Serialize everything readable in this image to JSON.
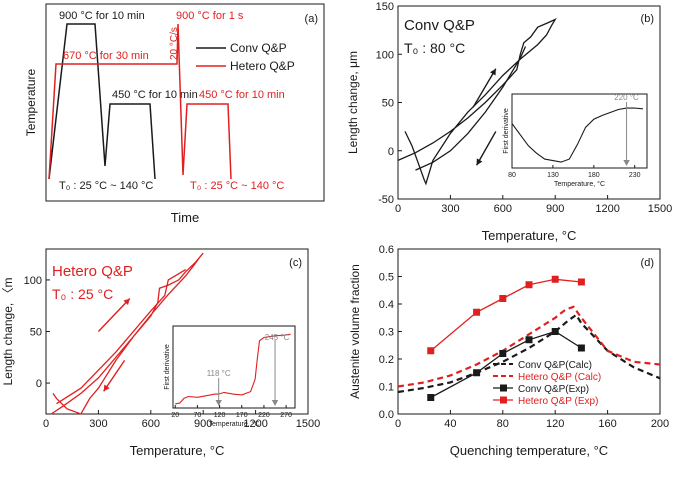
{
  "chart_data": [
    {
      "panel": "a",
      "type": "line",
      "panel_label": "(a)",
      "xlabel": "Time",
      "ylabel": "Temperature",
      "legend": [
        {
          "name": "Conv Q&P",
          "color": "#1a1a1a"
        },
        {
          "name": "Hetero Q&P",
          "color": "#e02020"
        }
      ],
      "annotations": {
        "conv_austenitize": "900 °C for 10 min",
        "conv_partition": "450 °C for 10 min",
        "conv_quench": "T₀ : 25 °C ~ 140 °C",
        "hetero_austenitize": "900 °C for 1 s",
        "hetero_intercritical": "670 °C for 30 min",
        "hetero_rate": "20 °C/s",
        "hetero_partition": "450 °C for 10 min",
        "hetero_quench": "T₀ : 25 °C ~ 140 °C"
      }
    },
    {
      "panel": "b",
      "type": "line",
      "panel_label": "(b)",
      "title": "Conv Q&P",
      "subtitle": "T₀ : 80 °C",
      "xlabel": "Temperature, °C",
      "ylabel": "Length change, μm",
      "xlim": [
        0,
        1500
      ],
      "ylim": [
        -50,
        150
      ],
      "xticks": [
        0,
        300,
        600,
        900,
        1200,
        1500
      ],
      "yticks": [
        -50,
        0,
        50,
        100,
        150
      ],
      "series": [
        {
          "x": [
            0,
            100,
            200,
            300,
            400,
            500,
            600,
            680,
            700,
            720,
            760,
            800,
            850,
            900,
            880,
            850,
            800,
            700,
            600,
            500,
            400,
            300,
            200,
            170,
            160,
            150,
            120,
            80,
            40
          ],
          "y": [
            -10,
            -2,
            8,
            20,
            34,
            50,
            68,
            84,
            100,
            112,
            118,
            128,
            132,
            136,
            130,
            120,
            110,
            95,
            78,
            58,
            40,
            18,
            -10,
            -28,
            -34,
            -30,
            -15,
            5,
            20
          ]
        },
        {
          "x": [
            100,
            200,
            300,
            400,
            500,
            600,
            700,
            730
          ],
          "y": [
            -20,
            -12,
            0,
            18,
            40,
            66,
            96,
            108
          ]
        }
      ],
      "inset": {
        "xlabel": "Temperature, °C",
        "ylabel": "First derivative",
        "xticks": [
          80,
          130,
          180,
          230
        ],
        "annotation": "220 °C",
        "x": [
          80,
          90,
          100,
          110,
          120,
          130,
          140,
          150,
          160,
          170,
          180,
          190,
          200,
          210,
          220,
          230,
          240
        ],
        "y": [
          0.6,
          0.45,
          0.3,
          0.2,
          0.12,
          0.1,
          0.08,
          0.12,
          0.32,
          0.55,
          0.66,
          0.71,
          0.75,
          0.79,
          0.81,
          0.81,
          0.8
        ]
      }
    },
    {
      "panel": "c",
      "type": "line",
      "panel_label": "(c)",
      "title": "Hetero Q&P",
      "subtitle": "T₀ : 25 °C",
      "xlabel": "Temperature, °C",
      "ylabel": "Length change, 〈m",
      "xlim": [
        0,
        1500
      ],
      "ylim": [
        -30,
        130
      ],
      "xticks": [
        0,
        300,
        600,
        900,
        1200,
        1500
      ],
      "yticks": [
        0,
        50,
        100
      ],
      "series": [
        {
          "x": [
            30,
            100,
            200,
            300,
            400,
            500,
            600,
            640,
            650,
            700,
            760,
            800,
            850,
            900,
            880,
            850,
            800,
            700,
            600,
            500,
            400,
            300,
            250,
            200,
            120,
            60,
            40
          ],
          "y": [
            -30,
            -22,
            -10,
            5,
            25,
            45,
            65,
            78,
            92,
            95,
            100,
            108,
            116,
            126,
            122,
            115,
            104,
            86,
            66,
            45,
            22,
            -5,
            -15,
            -30,
            -25,
            -15,
            -10
          ]
        },
        {
          "x": [
            60,
            200,
            400,
            600,
            680,
            700,
            800
          ],
          "y": [
            -20,
            -5,
            30,
            70,
            85,
            100,
            110
          ]
        }
      ],
      "inset": {
        "xlabel": "Temperature, °C",
        "ylabel": "First derivative",
        "xticks": [
          20,
          70,
          120,
          170,
          220,
          270
        ],
        "annotations": [
          "118 °C",
          "245 °C"
        ],
        "x": [
          20,
          30,
          40,
          50,
          70,
          90,
          110,
          118,
          130,
          150,
          170,
          190,
          200,
          205,
          210,
          220,
          245,
          270,
          280
        ],
        "y": [
          0.05,
          0.06,
          0.12,
          0.14,
          0.13,
          0.15,
          0.17,
          0.17,
          0.19,
          0.17,
          0.16,
          0.2,
          0.35,
          0.6,
          0.82,
          0.86,
          0.88,
          0.89,
          0.9
        ]
      }
    },
    {
      "panel": "d",
      "type": "line",
      "panel_label": "(d)",
      "xlabel": "Quenching temperature, °C",
      "ylabel": "Austenite volume fraction",
      "xlim": [
        0,
        200
      ],
      "ylim": [
        0.0,
        0.6
      ],
      "xticks": [
        0,
        40,
        80,
        120,
        160,
        200
      ],
      "yticks": [
        0.0,
        0.1,
        0.2,
        0.3,
        0.4,
        0.5,
        0.6
      ],
      "series": [
        {
          "name": "Conv Q&P(Calc)",
          "style": "dashed",
          "color": "#1a1a1a",
          "x": [
            0,
            20,
            40,
            60,
            80,
            100,
            120,
            130,
            136,
            140,
            160,
            180,
            200
          ],
          "y": [
            0.08,
            0.095,
            0.115,
            0.15,
            0.19,
            0.24,
            0.3,
            0.34,
            0.36,
            0.33,
            0.23,
            0.17,
            0.13
          ]
        },
        {
          "name": "Hetero Q&P (Calc)",
          "style": "dashed",
          "color": "#e02020",
          "x": [
            0,
            20,
            40,
            60,
            80,
            100,
            120,
            128,
            134,
            140,
            160,
            180,
            200
          ],
          "y": [
            0.1,
            0.115,
            0.14,
            0.18,
            0.23,
            0.29,
            0.35,
            0.38,
            0.39,
            0.35,
            0.23,
            0.19,
            0.18
          ]
        },
        {
          "name": "Conv Q&P(Exp)",
          "style": "marker-line",
          "color": "#1a1a1a",
          "x": [
            25,
            60,
            80,
            100,
            120,
            140
          ],
          "y": [
            0.06,
            0.15,
            0.22,
            0.27,
            0.3,
            0.24
          ]
        },
        {
          "name": "Hetero Q&P (Exp)",
          "style": "marker-line",
          "color": "#e02020",
          "x": [
            25,
            60,
            80,
            100,
            120,
            140
          ],
          "y": [
            0.23,
            0.37,
            0.42,
            0.47,
            0.49,
            0.48
          ]
        }
      ]
    }
  ]
}
